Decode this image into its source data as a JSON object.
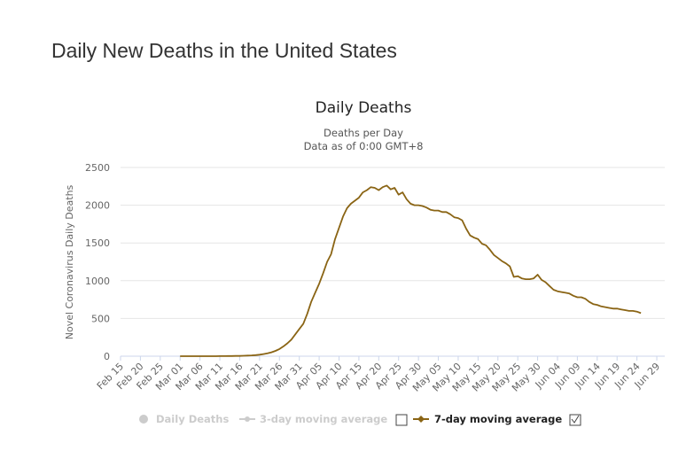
{
  "page": {
    "title": "Daily New Deaths in the United States"
  },
  "chart_data": {
    "type": "line",
    "title": "Daily Deaths",
    "subtitle_line1": "Deaths per Day",
    "subtitle_line2": "Data as of 0:00 GMT+8",
    "ylabel": "Novel Coronavirus Daily Deaths",
    "xlabel": "",
    "ylim": [
      0,
      2500
    ],
    "y_ticks": [
      0,
      500,
      1000,
      1500,
      2000,
      2500
    ],
    "grid": true,
    "start_date": "Feb 15",
    "x_tick_labels": [
      "Feb 15",
      "Feb 20",
      "Feb 25",
      "Mar 01",
      "Mar 06",
      "Mar 11",
      "Mar 16",
      "Mar 21",
      "Mar 26",
      "Mar 31",
      "Apr 05",
      "Apr 10",
      "Apr 15",
      "Apr 20",
      "Apr 25",
      "Apr 30",
      "May 05",
      "May 10",
      "May 15",
      "May 20",
      "May 25",
      "May 30",
      "Jun 04",
      "Jun 09",
      "Jun 14",
      "Jun 19",
      "Jun 24",
      "Jun 29"
    ],
    "series": [
      {
        "name": "7-day moving average",
        "color": "#8a6414",
        "start_day_index": 15,
        "values": [
          0,
          0,
          0,
          0,
          0,
          0,
          0,
          0,
          0,
          0,
          1,
          1,
          2,
          2,
          3,
          4,
          6,
          8,
          10,
          14,
          20,
          28,
          38,
          52,
          70,
          95,
          130,
          170,
          220,
          290,
          360,
          430,
          560,
          720,
          840,
          960,
          1100,
          1250,
          1350,
          1550,
          1700,
          1850,
          1960,
          2020,
          2060,
          2100,
          2170,
          2200,
          2240,
          2230,
          2200,
          2240,
          2260,
          2210,
          2230,
          2140,
          2170,
          2080,
          2020,
          2000,
          2000,
          1990,
          1970,
          1940,
          1930,
          1930,
          1910,
          1910,
          1880,
          1840,
          1830,
          1800,
          1690,
          1600,
          1570,
          1550,
          1490,
          1470,
          1410,
          1340,
          1300,
          1260,
          1230,
          1190,
          1050,
          1060,
          1030,
          1020,
          1020,
          1030,
          1080,
          1010,
          980,
          930,
          880,
          860,
          850,
          840,
          830,
          800,
          780,
          780,
          760,
          720,
          690,
          680,
          660,
          650,
          640,
          630,
          630,
          620,
          610,
          600,
          600,
          590,
          570
        ]
      }
    ],
    "legend": [
      {
        "label": "Daily Deaths",
        "state": "hidden",
        "color": "#cccccc"
      },
      {
        "label": "3-day moving average",
        "state": "hidden",
        "color": "#cccccc"
      },
      {
        "label": "7-day moving average",
        "state": "visible",
        "color": "#8a6414"
      }
    ]
  }
}
